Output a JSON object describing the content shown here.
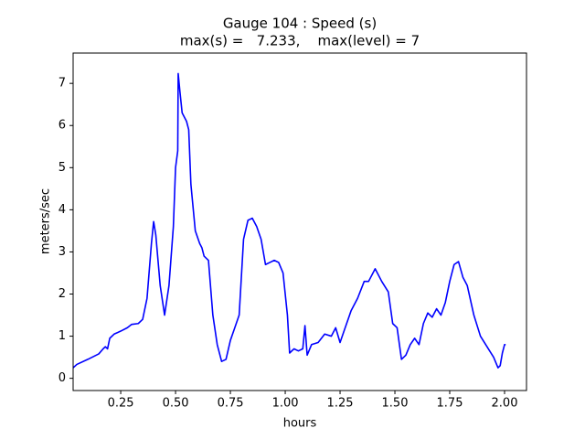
{
  "chart_data": {
    "type": "line",
    "title": "Gauge 104 : Speed (s)",
    "subtitle": "max(s) =   7.233,    max(level) = 7",
    "xlabel": "hours",
    "ylabel": "meters/sec",
    "xlim": [
      0.033,
      2.1
    ],
    "ylim": [
      -0.29,
      7.72
    ],
    "xticks": [
      0.25,
      {
        "value": 0.5,
        "label": "0.50"
      },
      0.75,
      {
        "value": 1,
        "label": "1.00"
      },
      1.25,
      {
        "value": 1.5,
        "label": "1.50"
      },
      1.75,
      {
        "value": 2,
        "label": "2.00"
      }
    ],
    "yticks": [
      0,
      1,
      2,
      3,
      4,
      5,
      6,
      7
    ],
    "x": [
      0.033,
      0.05,
      0.1,
      0.15,
      0.17,
      0.18,
      0.19,
      0.2,
      0.22,
      0.25,
      0.28,
      0.3,
      0.33,
      0.35,
      0.37,
      0.39,
      0.4,
      0.41,
      0.43,
      0.45,
      0.47,
      0.49,
      0.5,
      0.51,
      0.512,
      0.52,
      0.53,
      0.55,
      0.56,
      0.57,
      0.59,
      0.61,
      0.62,
      0.63,
      0.65,
      0.67,
      0.69,
      0.71,
      0.73,
      0.75,
      0.77,
      0.79,
      0.81,
      0.83,
      0.85,
      0.87,
      0.89,
      0.91,
      0.93,
      0.95,
      0.97,
      0.99,
      1.01,
      1.02,
      1.04,
      1.06,
      1.08,
      1.09,
      1.1,
      1.12,
      1.15,
      1.18,
      1.21,
      1.23,
      1.25,
      1.27,
      1.3,
      1.33,
      1.36,
      1.38,
      1.41,
      1.44,
      1.47,
      1.49,
      1.51,
      1.53,
      1.55,
      1.57,
      1.59,
      1.61,
      1.63,
      1.65,
      1.67,
      1.69,
      1.71,
      1.73,
      1.75,
      1.77,
      1.79,
      1.81,
      1.83,
      1.86,
      1.89,
      1.92,
      1.95,
      1.97,
      1.98,
      1.99,
      2.0,
      2.005
    ],
    "series": [
      {
        "color": "#0000ff",
        "values": [
          0.25,
          0.33,
          0.45,
          0.58,
          0.7,
          0.75,
          0.7,
          0.95,
          1.05,
          1.12,
          1.2,
          1.28,
          1.3,
          1.4,
          1.9,
          3.2,
          3.72,
          3.4,
          2.2,
          1.5,
          2.2,
          3.6,
          5.0,
          5.4,
          7.233,
          6.8,
          6.3,
          6.1,
          5.9,
          4.6,
          3.5,
          3.2,
          3.1,
          2.9,
          2.8,
          1.5,
          0.8,
          0.4,
          0.45,
          0.9,
          1.2,
          1.5,
          3.3,
          3.75,
          3.8,
          3.6,
          3.3,
          2.7,
          2.75,
          2.8,
          2.75,
          2.5,
          1.5,
          0.6,
          0.7,
          0.65,
          0.7,
          1.25,
          0.55,
          0.8,
          0.85,
          1.05,
          1.0,
          1.2,
          0.85,
          1.15,
          1.6,
          1.9,
          2.3,
          2.3,
          2.6,
          2.3,
          2.05,
          1.3,
          1.2,
          0.45,
          0.55,
          0.8,
          0.95,
          0.8,
          1.3,
          1.55,
          1.45,
          1.65,
          1.5,
          1.8,
          2.3,
          2.7,
          2.77,
          2.4,
          2.2,
          1.5,
          1.0,
          0.75,
          0.5,
          0.25,
          0.3,
          0.6,
          0.8,
          0.8
        ]
      }
    ]
  }
}
